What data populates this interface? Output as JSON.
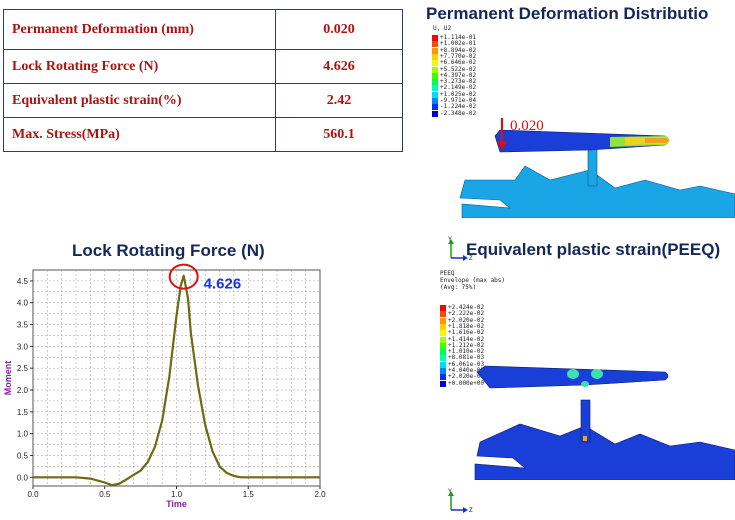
{
  "table": {
    "rows": [
      {
        "label": "Permanent Deformation (mm)",
        "value": "0.020"
      },
      {
        "label": "Lock Rotating  Force (N)",
        "value": "4.626"
      },
      {
        "label": "Equivalent plastic strain(%)",
        "value": "2.42"
      },
      {
        "label": "Max. Stress(MPa)",
        "value": "560.1"
      }
    ]
  },
  "deformation_panel": {
    "title": "Permanent Deformation Distributio",
    "legend_title": "U, U2",
    "legend_values": [
      "+1.114e-01",
      "+1.002e-01",
      "+8.894e-02",
      "+7.770e-02",
      "+6.646e-02",
      "+5.522e-02",
      "+4.397e-02",
      "+3.273e-02",
      "+2.149e-02",
      "+1.025e-02",
      "-9.971e-04",
      "-1.224e-02",
      "-2.348e-02"
    ],
    "legend_colors": [
      "#ff0000",
      "#ff4a00",
      "#ff9500",
      "#ffd000",
      "#e8ff00",
      "#9dff00",
      "#3cff00",
      "#00ff55",
      "#00ffb0",
      "#00d9ff",
      "#0085ff",
      "#0030ff",
      "#0000c8"
    ],
    "annotation": "0.020",
    "triad": {
      "y": "Y",
      "z": "Z"
    }
  },
  "peeq_panel": {
    "title": "Equivalent plastic strain(PEEQ)",
    "legend_title": "PEEQ\nEnvelope (max abs)\n(Avg: 75%)",
    "legend_values": [
      "+2.424e-02",
      "+2.222e-02",
      "+2.020e-02",
      "+1.818e-02",
      "+1.616e-02",
      "+1.414e-02",
      "+1.212e-02",
      "+1.010e-02",
      "+8.081e-03",
      "+6.061e-03",
      "+4.040e-03",
      "+2.020e-03",
      "+0.000e+00"
    ],
    "legend_colors": [
      "#ff0000",
      "#ff4a00",
      "#ff9500",
      "#ffd000",
      "#e8ff00",
      "#9dff00",
      "#3cff00",
      "#00ff55",
      "#00ffb0",
      "#00d9ff",
      "#0085ff",
      "#0030ff",
      "#0000c8"
    ],
    "triad": {
      "y": "Y",
      "z": "Z"
    }
  },
  "chart_data": {
    "type": "line",
    "title": "Lock Rotating  Force (N)",
    "xlabel": "Time",
    "ylabel": "Moment",
    "xlim": [
      0.0,
      2.0
    ],
    "ylim": [
      0.0,
      4.6
    ],
    "x_ticks": [
      "0.0",
      "0.5",
      "1.0",
      "1.5",
      "2.0"
    ],
    "y_ticks": [
      "0.0",
      "0.5",
      "1.0",
      "1.5",
      "2.0",
      "2.5",
      "3.0",
      "3.5",
      "4.0",
      "4.5"
    ],
    "grid": true,
    "peak_label": "4.626",
    "series": [
      {
        "color": "#6b6b10",
        "x": [
          0.0,
          0.1,
          0.2,
          0.3,
          0.4,
          0.5,
          0.55,
          0.6,
          0.65,
          0.7,
          0.75,
          0.8,
          0.85,
          0.9,
          0.95,
          1.0,
          1.03,
          1.05,
          1.08,
          1.1,
          1.15,
          1.2,
          1.25,
          1.3,
          1.35,
          1.4,
          1.45,
          1.5,
          1.6,
          1.8,
          2.0
        ],
        "y": [
          0.0,
          0.0,
          0.0,
          0.0,
          -0.03,
          -0.12,
          -0.18,
          -0.15,
          -0.05,
          0.05,
          0.15,
          0.35,
          0.7,
          1.3,
          2.3,
          3.7,
          4.4,
          4.62,
          4.1,
          3.3,
          2.1,
          1.2,
          0.6,
          0.25,
          0.1,
          0.03,
          0.0,
          0.0,
          0.0,
          0.0,
          0.0
        ]
      }
    ]
  }
}
